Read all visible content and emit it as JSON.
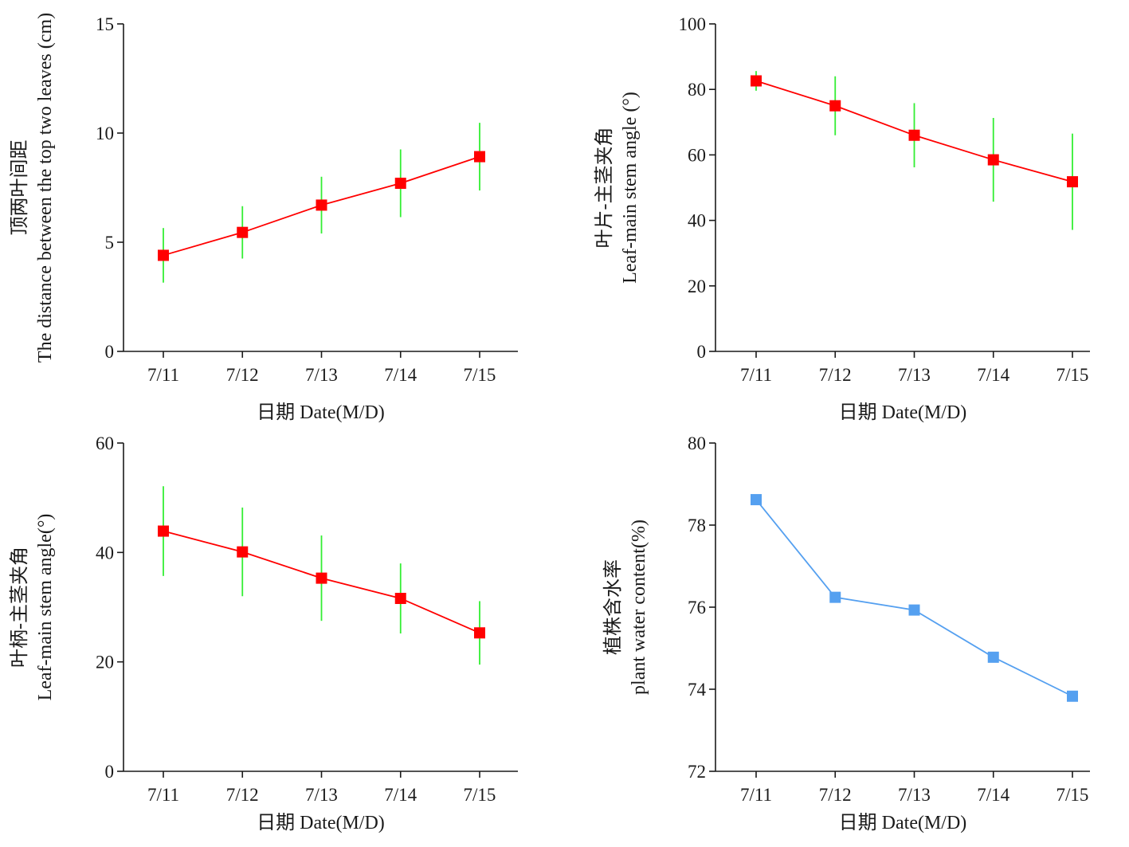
{
  "chart_data": [
    {
      "type": "line",
      "categories": [
        "7/11",
        "7/12",
        "7/13",
        "7/14",
        "7/15"
      ],
      "series": [
        {
          "values": [
            4.4,
            5.45,
            6.7,
            7.7,
            8.92
          ],
          "error": [
            1.25,
            1.2,
            1.3,
            1.55,
            1.55
          ],
          "color": "#ff0000",
          "error_color": "#33ee33"
        }
      ],
      "xlabel": "日期 Date(M/D)",
      "ylabel_lines": [
        "顶两叶间距",
        "The distance between the top two leaves (cm)"
      ],
      "ylim": [
        0,
        15
      ],
      "yticks": [
        0,
        5,
        10,
        15
      ]
    },
    {
      "type": "line",
      "categories": [
        "7/11",
        "7/12",
        "7/13",
        "7/14",
        "7/15"
      ],
      "series": [
        {
          "values": [
            82.6,
            75.0,
            66.0,
            58.5,
            51.8
          ],
          "error": [
            3.0,
            9.0,
            9.8,
            12.8,
            14.7
          ],
          "color": "#ff0000",
          "error_color": "#33ee33"
        }
      ],
      "xlabel": "日期 Date(M/D)",
      "ylabel_lines": [
        "叶片-主茎夹角",
        "Leaf-main stem angle (°)"
      ],
      "ylim": [
        0,
        100
      ],
      "yticks": [
        0,
        20,
        40,
        60,
        80,
        100
      ]
    },
    {
      "type": "line",
      "categories": [
        "7/11",
        "7/12",
        "7/13",
        "7/14",
        "7/15"
      ],
      "series": [
        {
          "values": [
            43.9,
            40.1,
            35.3,
            31.6,
            25.3
          ],
          "error": [
            8.2,
            8.1,
            7.8,
            6.4,
            5.8
          ],
          "color": "#ff0000",
          "error_color": "#33ee33"
        }
      ],
      "xlabel": "日期 Date(M/D)",
      "ylabel_lines": [
        "叶柄-主茎夹角",
        "Leaf-main stem angle(°)"
      ],
      "ylim": [
        0,
        60
      ],
      "yticks": [
        0,
        20,
        40,
        60
      ]
    },
    {
      "type": "line",
      "categories": [
        "7/11",
        "7/12",
        "7/13",
        "7/14",
        "7/15"
      ],
      "series": [
        {
          "values": [
            78.62,
            76.24,
            75.93,
            74.78,
            73.83
          ],
          "color": "#55a0f0"
        }
      ],
      "xlabel": "日期 Date(M/D)",
      "ylabel_lines": [
        "植株含水率",
        "plant water content(%)"
      ],
      "ylim": [
        72,
        80
      ],
      "yticks": [
        72,
        74,
        76,
        78,
        80
      ]
    }
  ]
}
